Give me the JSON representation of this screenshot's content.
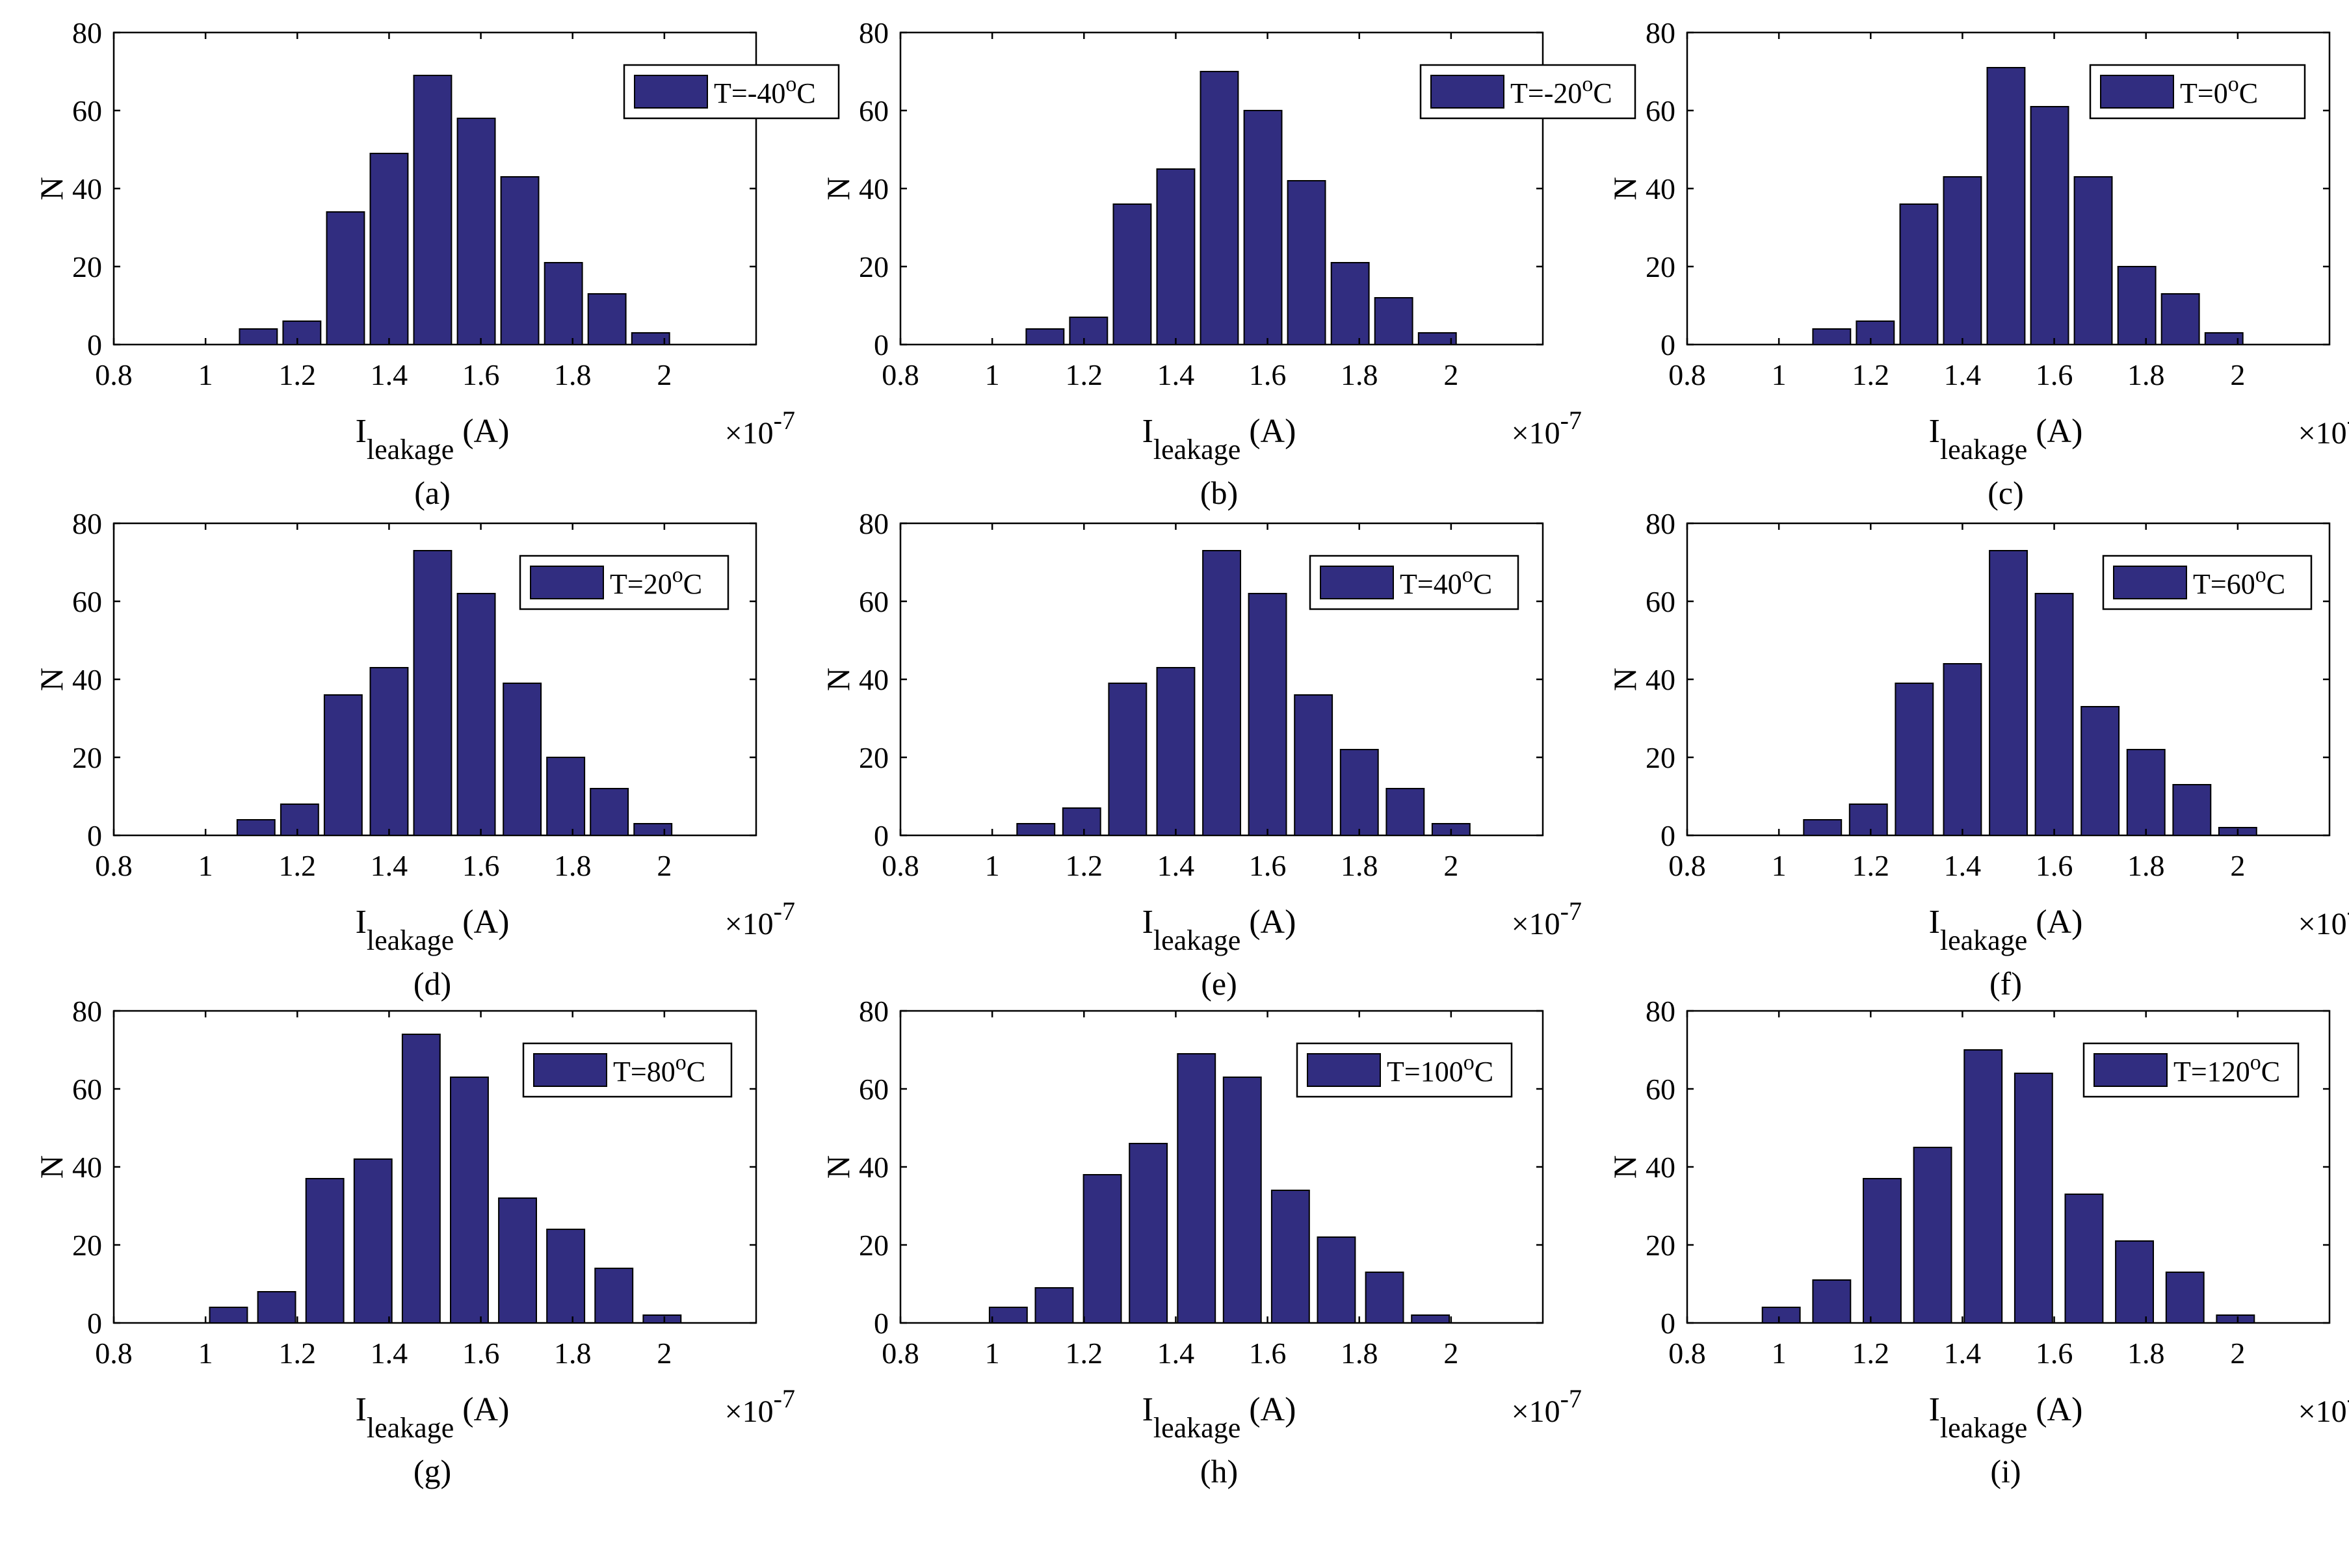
{
  "figure": {
    "bar_color": "#312D80",
    "bar_edge_color": "#000000",
    "exponent_prefix": "×10",
    "exponent_value": "-7"
  },
  "chart_data": [
    {
      "type": "bar",
      "panel_label": "(a)",
      "legend": "T=-40",
      "legend_unit_sup": "o",
      "legend_unit": "C",
      "xlabel_main": "I",
      "xlabel_sub": "leakage",
      "xlabel_unit": " (A)",
      "ylabel": "N",
      "xlim": [
        0.8,
        2.2
      ],
      "ylim": [
        0,
        80
      ],
      "xticks": [
        "0.8",
        "1",
        "1.2",
        "1.4",
        "1.6",
        "1.8",
        "2"
      ],
      "yticks": [
        "0",
        "20",
        "40",
        "60",
        "80"
      ],
      "x": [
        1.115,
        1.21,
        1.305,
        1.4,
        1.495,
        1.59,
        1.685,
        1.78,
        1.875,
        1.97
      ],
      "values": [
        4,
        6,
        34,
        49,
        69,
        58,
        43,
        21,
        13,
        3
      ]
    },
    {
      "type": "bar",
      "panel_label": "(b)",
      "legend": "T=-20",
      "legend_unit_sup": "o",
      "legend_unit": "C",
      "xlabel_main": "I",
      "xlabel_sub": "leakage",
      "xlabel_unit": " (A)",
      "ylabel": "N",
      "xlim": [
        0.8,
        2.2
      ],
      "ylim": [
        0,
        80
      ],
      "xticks": [
        "0.8",
        "1",
        "1.2",
        "1.4",
        "1.6",
        "1.8",
        "2"
      ],
      "yticks": [
        "0",
        "20",
        "40",
        "60",
        "80"
      ],
      "x": [
        1.115,
        1.21,
        1.305,
        1.4,
        1.495,
        1.59,
        1.685,
        1.78,
        1.875,
        1.97
      ],
      "values": [
        4,
        7,
        36,
        45,
        70,
        60,
        42,
        21,
        12,
        3
      ]
    },
    {
      "type": "bar",
      "panel_label": "(c)",
      "legend": "T=0",
      "legend_unit_sup": "o",
      "legend_unit": "C",
      "xlabel_main": "I",
      "xlabel_sub": "leakage",
      "xlabel_unit": " (A)",
      "ylabel": "N",
      "xlim": [
        0.8,
        2.2
      ],
      "ylim": [
        0,
        80
      ],
      "xticks": [
        "0.8",
        "1",
        "1.2",
        "1.4",
        "1.6",
        "1.8",
        "2"
      ],
      "yticks": [
        "0",
        "20",
        "40",
        "60",
        "80"
      ],
      "x": [
        1.115,
        1.21,
        1.305,
        1.4,
        1.495,
        1.59,
        1.685,
        1.78,
        1.875,
        1.97
      ],
      "values": [
        4,
        6,
        36,
        43,
        71,
        61,
        43,
        20,
        13,
        3
      ]
    },
    {
      "type": "bar",
      "panel_label": "(d)",
      "legend": "T=20",
      "legend_unit_sup": "o",
      "legend_unit": "C",
      "xlabel_main": "I",
      "xlabel_sub": "leakage",
      "xlabel_unit": " (A)",
      "ylabel": "N",
      "xlim": [
        0.8,
        2.2
      ],
      "ylim": [
        0,
        80
      ],
      "xticks": [
        "0.8",
        "1",
        "1.2",
        "1.4",
        "1.6",
        "1.8",
        "2"
      ],
      "yticks": [
        "0",
        "20",
        "40",
        "60",
        "80"
      ],
      "x": [
        1.11,
        1.205,
        1.3,
        1.4,
        1.495,
        1.59,
        1.69,
        1.785,
        1.88,
        1.975
      ],
      "values": [
        4,
        8,
        36,
        43,
        73,
        62,
        39,
        20,
        12,
        3
      ]
    },
    {
      "type": "bar",
      "panel_label": "(e)",
      "legend": "T=40",
      "legend_unit_sup": "o",
      "legend_unit": "C",
      "xlabel_main": "I",
      "xlabel_sub": "leakage",
      "xlabel_unit": " (A)",
      "ylabel": "N",
      "xlim": [
        0.8,
        2.2
      ],
      "ylim": [
        0,
        80
      ],
      "xticks": [
        "0.8",
        "1",
        "1.2",
        "1.4",
        "1.6",
        "1.8",
        "2"
      ],
      "yticks": [
        "0",
        "20",
        "40",
        "60",
        "80"
      ],
      "x": [
        1.095,
        1.195,
        1.295,
        1.4,
        1.5,
        1.6,
        1.7,
        1.8,
        1.9,
        2.0
      ],
      "values": [
        3,
        7,
        39,
        43,
        73,
        62,
        36,
        22,
        12,
        3
      ]
    },
    {
      "type": "bar",
      "panel_label": "(f)",
      "legend": "T=60",
      "legend_unit_sup": "o",
      "legend_unit": "C",
      "xlabel_main": "I",
      "xlabel_sub": "leakage",
      "xlabel_unit": " (A)",
      "ylabel": "N",
      "xlim": [
        0.8,
        2.2
      ],
      "ylim": [
        0,
        80
      ],
      "xticks": [
        "0.8",
        "1",
        "1.2",
        "1.4",
        "1.6",
        "1.8",
        "2"
      ],
      "yticks": [
        "0",
        "20",
        "40",
        "60",
        "80"
      ],
      "x": [
        1.095,
        1.195,
        1.295,
        1.4,
        1.5,
        1.6,
        1.7,
        1.8,
        1.9,
        2.0
      ],
      "values": [
        4,
        8,
        39,
        44,
        73,
        62,
        33,
        22,
        13,
        2
      ]
    },
    {
      "type": "bar",
      "panel_label": "(g)",
      "legend": "T=80",
      "legend_unit_sup": "o",
      "legend_unit": "C",
      "xlabel_main": "I",
      "xlabel_sub": "leakage",
      "xlabel_unit": " (A)",
      "ylabel": "N",
      "xlim": [
        0.8,
        2.2
      ],
      "ylim": [
        0,
        80
      ],
      "xticks": [
        "0.8",
        "1",
        "1.2",
        "1.4",
        "1.6",
        "1.8",
        "2"
      ],
      "yticks": [
        "0",
        "20",
        "40",
        "60",
        "80"
      ],
      "x": [
        1.05,
        1.155,
        1.26,
        1.365,
        1.47,
        1.575,
        1.68,
        1.785,
        1.89,
        1.995
      ],
      "values": [
        4,
        8,
        37,
        42,
        74,
        63,
        32,
        24,
        14,
        2
      ]
    },
    {
      "type": "bar",
      "panel_label": "(h)",
      "legend": "T=100",
      "legend_unit_sup": "o",
      "legend_unit": "C",
      "xlabel_main": "I",
      "xlabel_sub": "leakage",
      "xlabel_unit": " (A)",
      "ylabel": "N",
      "xlim": [
        0.8,
        2.2
      ],
      "ylim": [
        0,
        80
      ],
      "xticks": [
        "0.8",
        "1",
        "1.2",
        "1.4",
        "1.6",
        "1.8",
        "2"
      ],
      "yticks": [
        "0",
        "20",
        "40",
        "60",
        "80"
      ],
      "x": [
        1.035,
        1.135,
        1.24,
        1.34,
        1.445,
        1.545,
        1.65,
        1.75,
        1.855,
        1.955
      ],
      "values": [
        4,
        9,
        38,
        46,
        69,
        63,
        34,
        22,
        13,
        2
      ]
    },
    {
      "type": "bar",
      "panel_label": "(i)",
      "legend": "T=120",
      "legend_unit_sup": "o",
      "legend_unit": "C",
      "xlabel_main": "I",
      "xlabel_sub": "leakage",
      "xlabel_unit": " (A)",
      "ylabel": "N",
      "xlim": [
        0.8,
        2.2
      ],
      "ylim": [
        0,
        80
      ],
      "xticks": [
        "0.8",
        "1",
        "1.2",
        "1.4",
        "1.6",
        "1.8",
        "2"
      ],
      "yticks": [
        "0",
        "20",
        "40",
        "60",
        "80"
      ],
      "x": [
        1.005,
        1.115,
        1.225,
        1.335,
        1.445,
        1.555,
        1.665,
        1.775,
        1.885,
        1.995
      ],
      "values": [
        4,
        11,
        37,
        45,
        70,
        64,
        33,
        21,
        13,
        2
      ]
    }
  ]
}
